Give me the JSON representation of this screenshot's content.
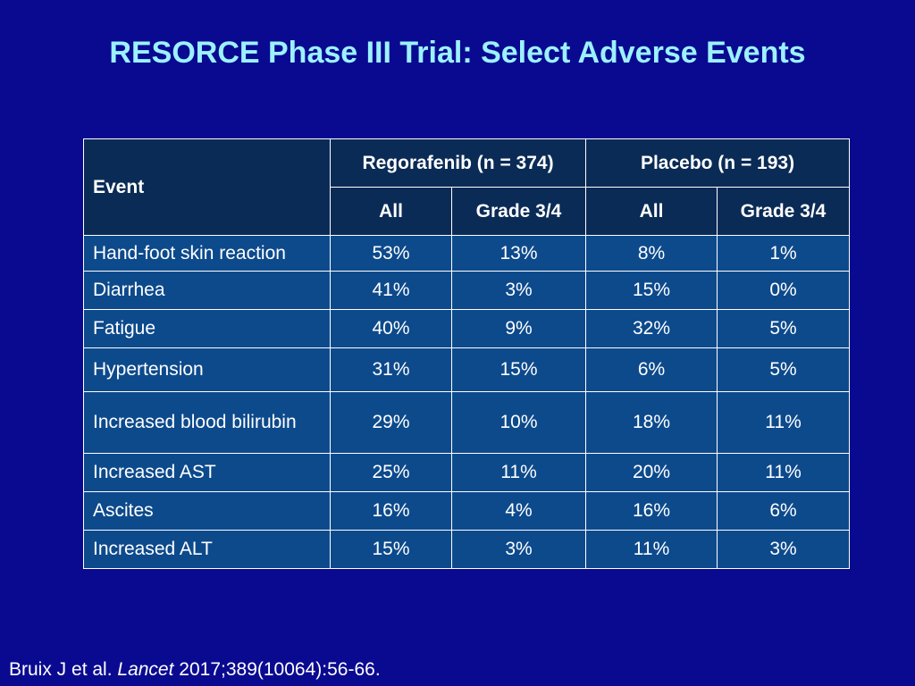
{
  "title": "RESORCE Phase III Trial: Select Adverse Events",
  "table": {
    "event_header": "Event",
    "groups": [
      {
        "label": "Regorafenib (n = 374)",
        "sub": [
          "All",
          "Grade 3/4"
        ]
      },
      {
        "label": "Placebo (n = 193)",
        "sub": [
          "All",
          "Grade 3/4"
        ]
      }
    ],
    "rows": [
      {
        "event": "Hand-foot skin reaction",
        "values": [
          "53%",
          "13%",
          "8%",
          "1%"
        ]
      },
      {
        "event": "Diarrhea",
        "values": [
          "41%",
          "3%",
          "15%",
          "0%"
        ]
      },
      {
        "event": "Fatigue",
        "values": [
          "40%",
          "9%",
          "32%",
          "5%"
        ]
      },
      {
        "event": "Hypertension",
        "values": [
          "31%",
          "15%",
          "6%",
          "5%"
        ]
      },
      {
        "event": "Increased blood bilirubin",
        "values": [
          "29%",
          "10%",
          "18%",
          "11%"
        ]
      },
      {
        "event": "Increased AST",
        "values": [
          "25%",
          "11%",
          "20%",
          "11%"
        ]
      },
      {
        "event": "Ascites",
        "values": [
          "16%",
          "4%",
          "16%",
          "6%"
        ]
      },
      {
        "event": "Increased ALT",
        "values": [
          "15%",
          "3%",
          "11%",
          "3%"
        ]
      }
    ]
  },
  "citation": {
    "authors": "Bruix J et al.",
    "journal": "Lancet",
    "ref": "2017;389(10064):56-66."
  },
  "colors": {
    "background": "#0a0a91",
    "title": "#9cf1ff",
    "header_cell": "#0a2b55",
    "body_cell": "#0d4a8c"
  }
}
